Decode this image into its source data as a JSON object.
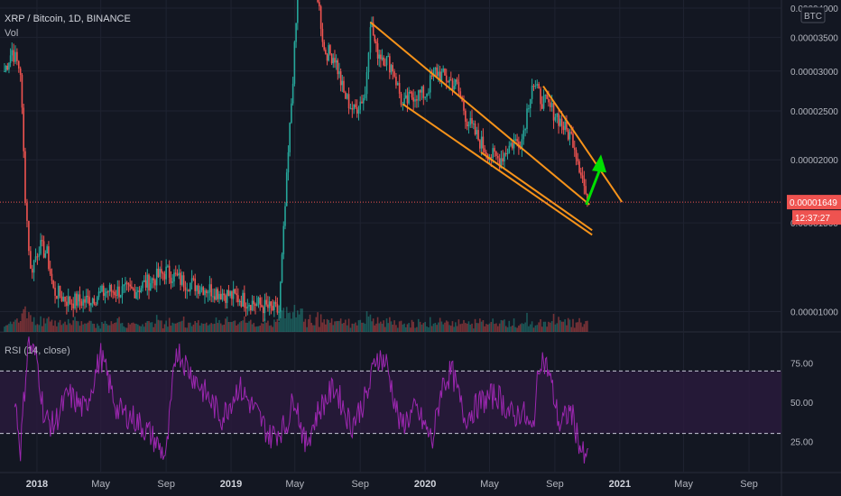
{
  "header": {
    "symbol_line": "XRP / Bitcoin, 1D, BINANCE",
    "volume_label": "Vol",
    "rsi_label": "RSI (14, close)",
    "currency_badge": "BTC"
  },
  "colors": {
    "background": "#131722",
    "up": "#26a69a",
    "down": "#ef5350",
    "trendline": "#f7931a",
    "arrow": "#00e000",
    "rsi_line": "#9c27b0",
    "rsi_band": "#2a1a3d",
    "price_tag": "#ef5350",
    "grid": "#1f2331"
  },
  "chart_data": [
    {
      "type": "candlestick",
      "title": "XRP / Bitcoin, 1D, BINANCE",
      "x_ticks": [
        "2018",
        "May",
        "Sep",
        "2019",
        "May",
        "Sep",
        "2020",
        "May",
        "Sep",
        "2021",
        "May",
        "Sep"
      ],
      "y_ticks": [
        "0.00004000",
        "0.00003500",
        "0.00003000",
        "0.00002500",
        "0.00002000",
        "0.00001500",
        "0.00001000"
      ],
      "y_scale": "log",
      "ylim": [
        9.5e-06,
        4.15e-05
      ],
      "last_price": "0.00001649",
      "countdown": "12:37:27",
      "series": [
        {
          "x": [
            "2017-11-01",
            "2017-11-15",
            "2017-12-01",
            "2017-12-10",
            "2017-12-20",
            "2018-01-05",
            "2018-01-20",
            "2018-02-01",
            "2018-03-01",
            "2018-04-01",
            "2018-05-15",
            "2018-07-01",
            "2018-09-01",
            "2018-10-01",
            "2018-12-01",
            "2019-02-01",
            "2019-04-01",
            "2019-05-15",
            "2019-06-10",
            "2019-06-25",
            "2019-07-15",
            "2019-08-01",
            "2019-08-20",
            "2019-09-10",
            "2019-09-20",
            "2019-10-01",
            "2019-10-15",
            "2019-11-01",
            "2019-11-20",
            "2019-12-10",
            "2020-01-01",
            "2020-01-20",
            "2020-02-10",
            "2020-03-01",
            "2020-03-20",
            "2020-04-10",
            "2020-05-01",
            "2020-05-20",
            "2020-06-10",
            "2020-07-01",
            "2020-07-20",
            "2020-08-05",
            "2020-08-20",
            "2020-09-05",
            "2020-09-20",
            "2020-10-05",
            "2020-10-20",
            "2020-11-01"
          ],
          "close": [
            3e-05,
            3.3e-05,
            3e-05,
            1.7e-05,
            1.2e-05,
            1.35e-05,
            1.3e-05,
            1.1e-05,
            1.05e-05,
            1.05e-05,
            1.1e-05,
            1.1e-05,
            1.2e-05,
            1.15e-05,
            1.1e-05,
            1.05e-05,
            1e-05,
            6e-05,
            4.5e-05,
            3.3e-05,
            3.2e-05,
            2.7e-05,
            2.5e-05,
            2.7e-05,
            3.8e-05,
            3.3e-05,
            3.2e-05,
            3.05e-05,
            2.55e-05,
            2.7e-05,
            2.7e-05,
            3e-05,
            2.9e-05,
            2.8e-05,
            2.4e-05,
            2.2e-05,
            2.05e-05,
            2e-05,
            2.15e-05,
            2.2e-05,
            2.85e-05,
            2.65e-05,
            2.55e-05,
            2.45e-05,
            2.3e-05,
            2.2e-05,
            1.9e-05,
            1.65e-05
          ]
        }
      ],
      "annotations": [
        {
          "type": "channel-line",
          "from": [
            "2019-09-20",
            3.75e-05
          ],
          "to": [
            "2020-11-05",
            1.63e-05
          ]
        },
        {
          "type": "channel-line",
          "from": [
            "2019-11-20",
            2.58e-05
          ],
          "to": [
            "2020-11-10",
            1.42e-05
          ]
        },
        {
          "type": "channel-line",
          "from": [
            "2020-08-10",
            2.8e-05
          ],
          "to": [
            "2021-01-05",
            1.65e-05
          ]
        },
        {
          "type": "channel-line",
          "from": [
            "2020-04-15",
            2.07e-05
          ],
          "to": [
            "2020-11-10",
            1.45e-05
          ]
        },
        {
          "type": "arrow",
          "from": [
            "2020-10-30",
            1.63e-05
          ],
          "to": [
            "2020-11-25",
            2e-05
          ]
        }
      ]
    },
    {
      "type": "bar",
      "title": "Vol",
      "note": "volume bars along the bottom of the price pane"
    },
    {
      "type": "line",
      "title": "RSI (14, close)",
      "y_ticks": [
        "75.00",
        "50.00",
        "25.00"
      ],
      "ylim": [
        5,
        95
      ],
      "bands": [
        30,
        70
      ],
      "x": [
        "2017-11-20",
        "2017-12-01",
        "2017-12-15",
        "2018-01-01",
        "2018-01-15",
        "2018-02-01",
        "2018-03-01",
        "2018-04-01",
        "2018-05-01",
        "2018-06-01",
        "2018-07-01",
        "2018-08-01",
        "2018-09-01",
        "2018-09-20",
        "2018-10-15",
        "2018-11-15",
        "2018-12-15",
        "2019-01-15",
        "2019-02-15",
        "2019-03-15",
        "2019-04-15",
        "2019-05-01",
        "2019-05-20",
        "2019-06-15",
        "2019-07-15",
        "2019-08-15",
        "2019-09-15",
        "2019-10-01",
        "2019-10-20",
        "2019-11-15",
        "2019-12-15",
        "2020-01-15",
        "2020-02-01",
        "2020-02-20",
        "2020-03-15",
        "2020-04-15",
        "2020-05-15",
        "2020-06-15",
        "2020-07-01",
        "2020-07-20",
        "2020-08-05",
        "2020-08-20",
        "2020-09-10",
        "2020-10-01",
        "2020-10-20",
        "2020-10-30",
        "2020-11-05"
      ],
      "y": [
        55,
        20,
        88,
        78,
        40,
        35,
        55,
        45,
        80,
        45,
        40,
        30,
        15,
        85,
        70,
        55,
        40,
        60,
        45,
        28,
        35,
        55,
        22,
        45,
        60,
        35,
        55,
        80,
        75,
        35,
        45,
        25,
        60,
        70,
        40,
        50,
        55,
        40,
        45,
        30,
        80,
        70,
        35,
        45,
        20,
        10,
        30
      ]
    }
  ]
}
